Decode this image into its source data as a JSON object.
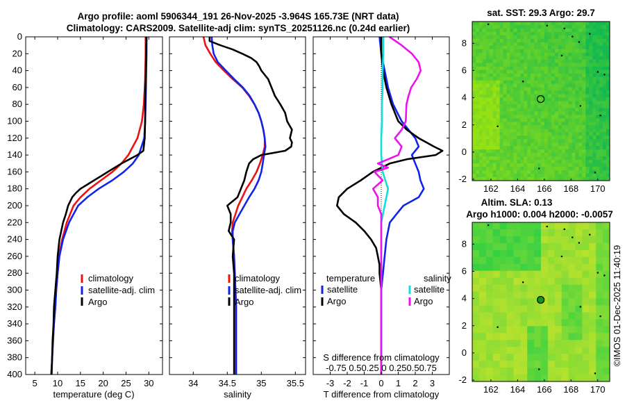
{
  "figure": {
    "title_line1": "Argo profile: aoml 5906344_191 26-Nov-2025 -3.964S 165.73E (NRT data)",
    "title_line2": "Climatology: CARS2009. Satellite-adj clim: synTS_20251126.nc (0.24d earlier)",
    "credit": "©IMOS 01-Dec-2025 11:40:19"
  },
  "colors": {
    "climatology": "#ee1111",
    "satellite": "#1122ee",
    "argo": "#000000",
    "t_sat": "#1122ee",
    "s_sat": "#11dddd",
    "s_argo": "#ee11ee"
  },
  "chart_data": [
    {
      "id": "temperature",
      "type": "line",
      "xlabel": "temperature (deg C)",
      "ylabel": "",
      "xlim": [
        3,
        33
      ],
      "ylim": [
        400,
        0
      ],
      "xticks": [
        "5",
        "10",
        "15",
        "20",
        "25",
        "30"
      ],
      "xtick_values": [
        5,
        10,
        15,
        20,
        25,
        30
      ],
      "yticks": [
        "0",
        "20",
        "40",
        "60",
        "80",
        "100",
        "120",
        "140",
        "160",
        "180",
        "200",
        "220",
        "240",
        "260",
        "280",
        "300",
        "320",
        "340",
        "360",
        "380",
        "400"
      ],
      "legend": [
        "climatology",
        "satellite-adj. clim",
        "Argo"
      ],
      "series": [
        {
          "name": "climatology",
          "color_key": "climatology",
          "depth": [
            0,
            20,
            50,
            80,
            100,
            120,
            140,
            150,
            160,
            170,
            180,
            190,
            200,
            220,
            240,
            260,
            280,
            300,
            320,
            340,
            360,
            380,
            400
          ],
          "values": [
            29.3,
            29.3,
            29.2,
            28.9,
            28.5,
            27.5,
            25.5,
            24.0,
            22.0,
            19.5,
            17.0,
            15.0,
            13.5,
            12.0,
            11.0,
            10.3,
            10.0,
            9.7,
            9.5,
            9.2,
            9.0,
            8.8,
            8.7
          ]
        },
        {
          "name": "satellite-adj. clim",
          "color_key": "satellite",
          "depth": [
            0,
            20,
            50,
            80,
            100,
            120,
            140,
            150,
            160,
            170,
            180,
            190,
            200,
            220,
            240,
            260,
            280,
            300,
            320,
            340,
            360,
            380,
            400
          ],
          "values": [
            29.5,
            29.5,
            29.4,
            29.3,
            29.2,
            29.0,
            27.8,
            26.5,
            24.5,
            22.0,
            19.0,
            16.5,
            14.5,
            12.5,
            11.2,
            10.4,
            10.0,
            9.7,
            9.5,
            9.2,
            9.0,
            8.8,
            8.7
          ]
        },
        {
          "name": "Argo",
          "color_key": "argo",
          "depth": [
            0,
            20,
            50,
            80,
            100,
            120,
            135,
            140,
            150,
            160,
            165,
            170,
            175,
            180,
            185,
            190,
            200,
            210,
            220,
            230,
            240,
            260,
            280,
            300,
            320,
            340,
            360,
            380,
            400
          ],
          "values": [
            29.5,
            29.4,
            29.3,
            29.2,
            29.2,
            29.1,
            28.8,
            27.5,
            24.0,
            21.0,
            19.5,
            18.0,
            16.5,
            15.0,
            14.0,
            13.2,
            12.3,
            11.8,
            11.2,
            10.8,
            10.4,
            10.0,
            9.8,
            9.5,
            9.2,
            9.1,
            8.9,
            8.8,
            8.6
          ]
        }
      ]
    },
    {
      "id": "salinity",
      "type": "line",
      "xlabel": "salinity",
      "ylabel": "",
      "xlim": [
        33.65,
        35.65
      ],
      "ylim": [
        400,
        0
      ],
      "xticks": [
        "34",
        "34.5",
        "35",
        "35.5"
      ],
      "xtick_values": [
        34,
        34.5,
        35,
        35.5
      ],
      "legend": [
        "climatology",
        "satellite-adj. clim",
        "Argo"
      ],
      "series": [
        {
          "name": "climatology",
          "color_key": "climatology",
          "depth": [
            0,
            10,
            20,
            30,
            40,
            50,
            60,
            70,
            80,
            90,
            100,
            110,
            120,
            130,
            140,
            150,
            160,
            170,
            180,
            190,
            200,
            210,
            220,
            230,
            240,
            260,
            280,
            300,
            320,
            340,
            360,
            380,
            400
          ],
          "values": [
            34.15,
            34.18,
            34.25,
            34.33,
            34.45,
            34.58,
            34.72,
            34.82,
            34.9,
            34.96,
            35.0,
            35.03,
            35.05,
            35.05,
            35.02,
            34.98,
            34.93,
            34.86,
            34.78,
            34.72,
            34.66,
            34.62,
            34.58,
            34.57,
            34.58,
            34.6,
            34.61,
            34.62,
            34.63,
            34.63,
            34.63,
            34.63,
            34.63
          ]
        },
        {
          "name": "satellite-adj. clim",
          "color_key": "satellite",
          "depth": [
            0,
            10,
            20,
            30,
            40,
            50,
            60,
            70,
            80,
            90,
            100,
            110,
            120,
            130,
            140,
            150,
            160,
            170,
            180,
            190,
            200,
            210,
            220,
            230,
            240,
            260,
            280,
            300,
            320,
            340,
            360,
            380,
            400
          ],
          "values": [
            34.27,
            34.28,
            34.3,
            34.36,
            34.48,
            34.6,
            34.73,
            34.83,
            34.9,
            34.96,
            35.0,
            35.03,
            35.05,
            35.06,
            35.04,
            35.02,
            35.0,
            34.96,
            34.9,
            34.82,
            34.75,
            34.68,
            34.61,
            34.58,
            34.58,
            34.6,
            34.61,
            34.62,
            34.63,
            34.63,
            34.63,
            34.63,
            34.63
          ]
        },
        {
          "name": "Argo",
          "color_key": "argo",
          "depth": [
            0,
            5,
            10,
            15,
            20,
            25,
            30,
            35,
            40,
            50,
            60,
            70,
            80,
            90,
            100,
            110,
            120,
            125,
            130,
            135,
            140,
            145,
            150,
            160,
            170,
            180,
            190,
            200,
            210,
            220,
            230,
            240,
            260,
            280,
            300,
            320,
            340,
            360,
            380,
            400
          ],
          "values": [
            34.24,
            34.24,
            34.4,
            34.58,
            34.72,
            34.85,
            34.93,
            34.97,
            35.0,
            35.1,
            35.15,
            35.2,
            35.28,
            35.35,
            35.38,
            35.45,
            35.42,
            35.45,
            35.44,
            35.35,
            35.0,
            34.88,
            34.82,
            34.78,
            34.75,
            34.7,
            34.65,
            34.5,
            34.55,
            34.55,
            34.52,
            34.6,
            34.58,
            34.6,
            34.6,
            34.6,
            34.6,
            34.6,
            34.6,
            34.6
          ]
        }
      ]
    },
    {
      "id": "differences",
      "type": "line",
      "xlabel": "T difference from climatology",
      "top_label": "S difference from climatology",
      "top_ticks": "-0.75 0.50.25 0 0.250.50.75",
      "xlim": [
        -4,
        4
      ],
      "ylim": [
        400,
        0
      ],
      "xticks": [
        "-3",
        "-2",
        "-1",
        "0",
        "1",
        "2",
        "3"
      ],
      "xtick_values": [
        -3,
        -2,
        -1,
        0,
        1,
        2,
        3
      ],
      "legend_t_header": "temperature",
      "legend_s_header": "salinity",
      "legend_t": [
        "satellite",
        "Argo"
      ],
      "legend_s": [
        "satellite",
        "Argo"
      ],
      "series": [
        {
          "name": "T satellite",
          "color_key": "t_sat",
          "depth": [
            0,
            20,
            40,
            60,
            80,
            100,
            120,
            130,
            140,
            150,
            160,
            170,
            180,
            190,
            200,
            210,
            220,
            240,
            260,
            280,
            300,
            340,
            400
          ],
          "values": [
            -0.1,
            0.0,
            0.2,
            0.4,
            0.7,
            1.2,
            2.0,
            2.2,
            1.8,
            2.0,
            2.2,
            2.3,
            2.5,
            2.2,
            1.3,
            0.9,
            0.5,
            0.3,
            0.2,
            0.1,
            0.0,
            0.0,
            0.0
          ]
        },
        {
          "name": "T Argo",
          "color_key": "argo",
          "depth": [
            0,
            20,
            40,
            60,
            80,
            100,
            110,
            120,
            130,
            135,
            140,
            145,
            150,
            160,
            170,
            180,
            190,
            200,
            210,
            220,
            230,
            240,
            250,
            260,
            270,
            280,
            300,
            340,
            400
          ],
          "values": [
            0.0,
            0.0,
            0.1,
            0.3,
            0.6,
            1.0,
            1.5,
            2.2,
            3.1,
            3.6,
            3.2,
            1.5,
            0.5,
            -0.5,
            -1.2,
            -2.0,
            -2.5,
            -2.6,
            -2.2,
            -1.5,
            -1.0,
            -0.6,
            -0.3,
            -0.2,
            -0.1,
            -0.1,
            0.0,
            0.0,
            0.0
          ]
        },
        {
          "name": "S satellite",
          "color_key": "s_sat",
          "depth": [
            0,
            20,
            40,
            60,
            80,
            100,
            120,
            140,
            160,
            180,
            200,
            220,
            240,
            260,
            280,
            300,
            340,
            400
          ],
          "values": [
            0.03,
            0.03,
            0.02,
            0.02,
            0.01,
            0.01,
            0.0,
            0.0,
            0.02,
            0.1,
            0.05,
            0.0,
            0.0,
            0.0,
            0.0,
            0.0,
            0.0,
            0.0
          ]
        },
        {
          "name": "S Argo",
          "color_key": "s_argo",
          "depth": [
            0,
            10,
            20,
            30,
            40,
            50,
            60,
            70,
            80,
            100,
            110,
            120,
            130,
            140,
            150,
            155,
            160,
            170,
            180,
            190,
            200,
            210,
            220,
            240,
            260,
            280,
            300,
            340,
            400
          ],
          "values": [
            0.12,
            0.3,
            0.45,
            0.55,
            0.58,
            0.52,
            0.44,
            0.4,
            0.37,
            0.36,
            0.3,
            0.2,
            0.3,
            0.25,
            -0.05,
            0.1,
            -0.1,
            0.02,
            -0.12,
            -0.05,
            -0.05,
            0.0,
            0.0,
            0.0,
            0.0,
            0.0,
            0.0,
            0.0,
            0.0
          ]
        }
      ]
    },
    {
      "id": "sst_map",
      "type": "heatmap",
      "title": "sat. SST: 29.3 Argo: 29.7",
      "xticks": [
        "162",
        "164",
        "166",
        "168",
        "170"
      ],
      "xtick_values": [
        162,
        164,
        166,
        168,
        170
      ],
      "yticks": [
        "8",
        "6",
        "4",
        "2",
        "0",
        "-2"
      ],
      "ytick_values": [
        8,
        6,
        4,
        2,
        0,
        -2
      ],
      "xlim": [
        160.6,
        170.9
      ],
      "ylim": [
        -2.1,
        9.6
      ],
      "argo_marker": [
        165.73,
        3.9
      ],
      "colormap": "sst"
    },
    {
      "id": "sla_map",
      "type": "heatmap",
      "title1": "Altim. SLA: 0.13",
      "title2": "Argo h1000: 0.004 h2000: -0.0057",
      "xticks": [
        "162",
        "164",
        "166",
        "168",
        "170"
      ],
      "xtick_values": [
        162,
        164,
        166,
        168,
        170
      ],
      "yticks": [
        "8",
        "6",
        "4",
        "2",
        "0",
        "-2"
      ],
      "ytick_values": [
        8,
        6,
        4,
        2,
        0,
        -2
      ],
      "xlim": [
        160.6,
        170.9
      ],
      "ylim": [
        -2.1,
        9.6
      ],
      "argo_marker": [
        165.73,
        3.9
      ],
      "colormap": "sla"
    }
  ]
}
